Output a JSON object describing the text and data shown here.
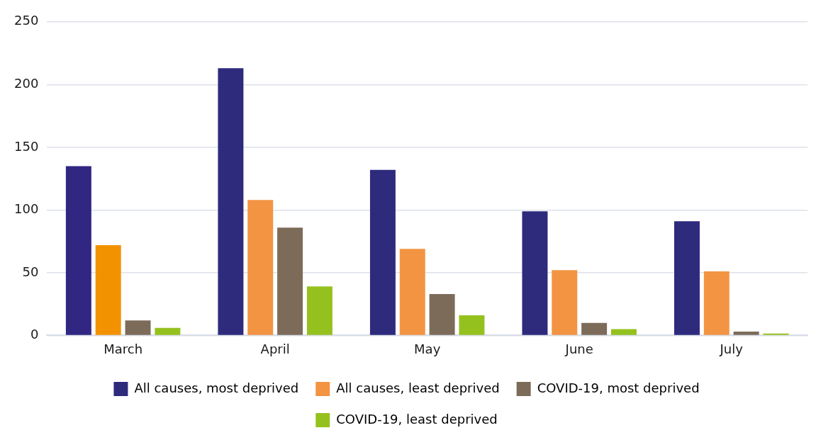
{
  "chart_data": {
    "type": "bar",
    "categories": [
      "March",
      "April",
      "May",
      "June",
      "July"
    ],
    "series": [
      {
        "name": "All causes, most deprived",
        "color": "#2e2b7d",
        "colors": [
          "#312783",
          "#2e2b7d",
          "#2e2b7d",
          "#2e2b7d",
          "#2e2b7d"
        ],
        "values": [
          135,
          213,
          132,
          99,
          91
        ]
      },
      {
        "name": "All causes, least deprived",
        "color": "#f39443",
        "colors": [
          "#f39200",
          "#f39443",
          "#f39443",
          "#f39443",
          "#f39443"
        ],
        "values": [
          72,
          108,
          69,
          52,
          51
        ]
      },
      {
        "name": "COVID-19, most deprived",
        "color": "#7d6b5a",
        "values": [
          12,
          86,
          33,
          10,
          3
        ]
      },
      {
        "name": "COVID-19, least deprived",
        "color": "#95c11f",
        "values": [
          6,
          39,
          16,
          5,
          1.5
        ]
      }
    ],
    "ylim": [
      0,
      250
    ],
    "yticks": [
      0,
      50,
      100,
      150,
      200,
      250
    ],
    "grid": "y",
    "legend": "bottom"
  }
}
